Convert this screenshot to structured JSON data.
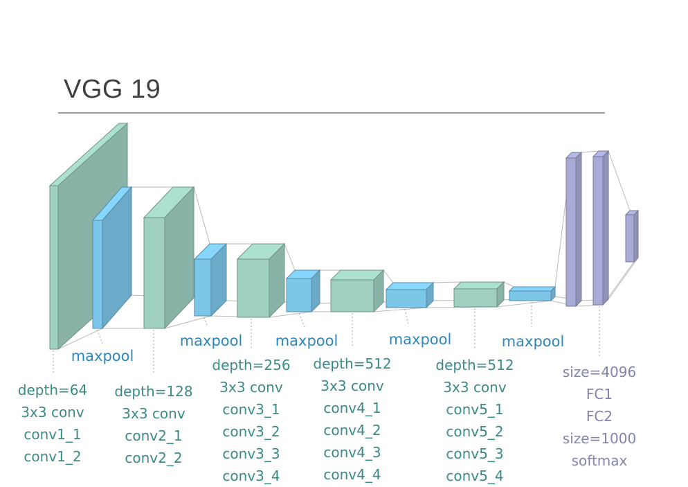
{
  "title": "VGG 19",
  "colors": {
    "conv_block": "#9fd0c1",
    "pool_block": "#7cc6ea",
    "fc_block": "#a7abd6",
    "conv_text": "#3a8a85",
    "pool_text": "#2f86b8",
    "fc_text": "#8383b0"
  },
  "pool_labels": [
    "maxpool",
    "maxpool",
    "maxpool",
    "maxpool",
    "maxpool"
  ],
  "conv_groups": [
    {
      "lines": [
        "depth=64",
        "3x3 conv",
        "conv1_1",
        "conv1_2"
      ]
    },
    {
      "lines": [
        "depth=128",
        "3x3 conv",
        "conv2_1",
        "conv2_2"
      ]
    },
    {
      "lines": [
        "depth=256",
        "3x3 conv",
        "conv3_1",
        "conv3_2",
        "conv3_3",
        "conv3_4"
      ]
    },
    {
      "lines": [
        "depth=512",
        "3x3 conv",
        "conv4_1",
        "conv4_2",
        "conv4_3",
        "conv4_4"
      ]
    },
    {
      "lines": [
        "depth=512",
        "3x3 conv",
        "conv5_1",
        "conv5_2",
        "conv5_3",
        "conv5_4"
      ]
    }
  ],
  "fc_group": {
    "lines": [
      "size=4096",
      "FC1",
      "FC2",
      "size=1000",
      "softmax"
    ]
  }
}
